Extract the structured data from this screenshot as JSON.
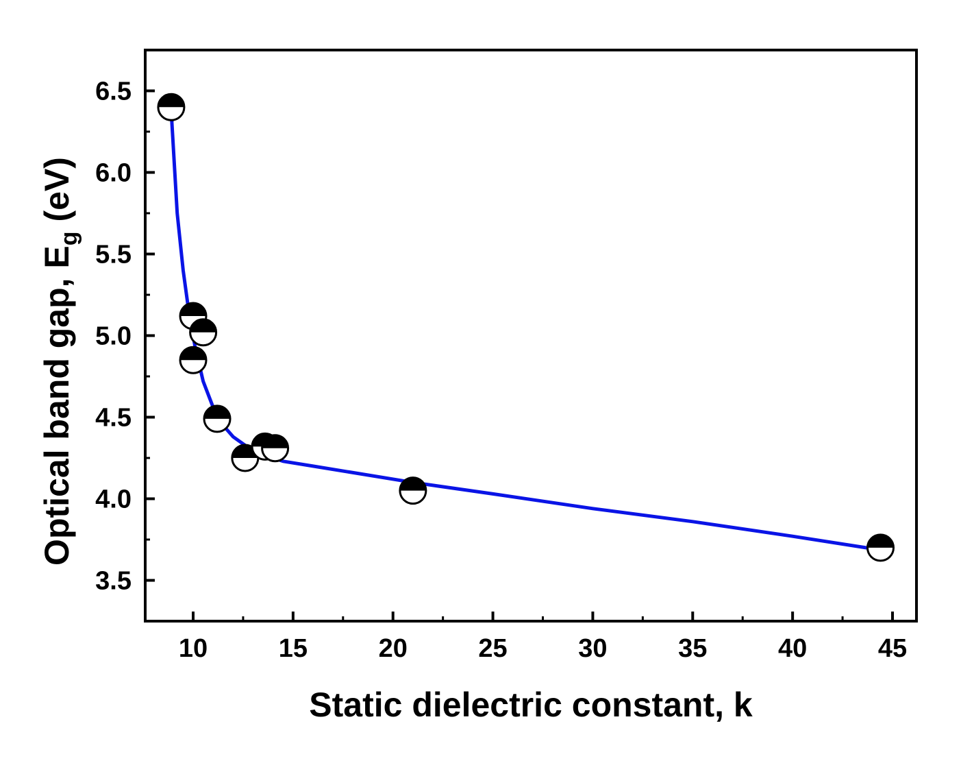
{
  "chart_data": {
    "type": "scatter",
    "xlabel": "Static dielectric constant, k",
    "ylabel": {
      "main": "Optical band gap, E",
      "subscript": "g",
      "unit": " (eV)"
    },
    "xlim": [
      7.6,
      46.2
    ],
    "ylim": [
      3.25,
      6.75
    ],
    "x_ticks": [
      10,
      15,
      20,
      25,
      30,
      35,
      40,
      45
    ],
    "x_tick_labels": [
      "10",
      "15",
      "20",
      "25",
      "30",
      "35",
      "40",
      "45"
    ],
    "y_ticks": [
      3.5,
      4.0,
      4.5,
      5.0,
      5.5,
      6.0,
      6.5
    ],
    "y_tick_labels": [
      "3.5",
      "4.0",
      "4.5",
      "5.0",
      "5.5",
      "6.0",
      "6.5"
    ],
    "grid": false,
    "legend": "none",
    "series": [
      {
        "marker": "half-filled-circle",
        "color": "#000000",
        "points": [
          {
            "x": 8.9,
            "y": 6.4
          },
          {
            "x": 10.0,
            "y": 5.12
          },
          {
            "x": 10.5,
            "y": 5.02
          },
          {
            "x": 10.0,
            "y": 4.85
          },
          {
            "x": 11.2,
            "y": 4.49
          },
          {
            "x": 12.6,
            "y": 4.25
          },
          {
            "x": 13.6,
            "y": 4.32
          },
          {
            "x": 14.1,
            "y": 4.31
          },
          {
            "x": 21.0,
            "y": 4.05
          },
          {
            "x": 44.4,
            "y": 3.7
          }
        ]
      },
      {
        "type": "line",
        "color": "#0a14e6",
        "points": [
          {
            "x": 8.9,
            "y": 6.38
          },
          {
            "x": 9.2,
            "y": 5.75
          },
          {
            "x": 9.5,
            "y": 5.4
          },
          {
            "x": 9.8,
            "y": 5.13
          },
          {
            "x": 10.1,
            "y": 4.93
          },
          {
            "x": 10.5,
            "y": 4.72
          },
          {
            "x": 11.0,
            "y": 4.56
          },
          {
            "x": 11.5,
            "y": 4.45
          },
          {
            "x": 12.0,
            "y": 4.38
          },
          {
            "x": 12.8,
            "y": 4.31
          },
          {
            "x": 13.5,
            "y": 4.27
          },
          {
            "x": 14.5,
            "y": 4.23
          },
          {
            "x": 16.0,
            "y": 4.2
          },
          {
            "x": 18.0,
            "y": 4.16
          },
          {
            "x": 21.0,
            "y": 4.1
          },
          {
            "x": 25.0,
            "y": 4.03
          },
          {
            "x": 30.0,
            "y": 3.94
          },
          {
            "x": 35.0,
            "y": 3.86
          },
          {
            "x": 40.0,
            "y": 3.77
          },
          {
            "x": 44.2,
            "y": 3.69
          }
        ]
      }
    ]
  }
}
